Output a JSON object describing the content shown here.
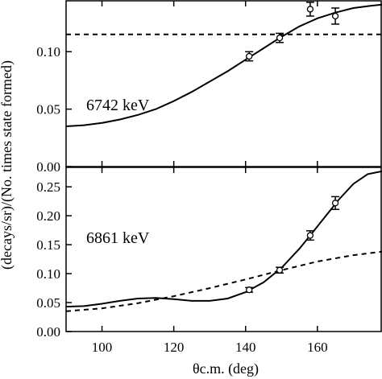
{
  "chart_data": [
    {
      "type": "line",
      "panel_label": "6742 keV",
      "xlim": [
        90,
        178
      ],
      "ylim": [
        0,
        0.145
      ],
      "xticks": [
        100,
        120,
        140,
        160
      ],
      "yticks": [
        0.0,
        0.05,
        0.1
      ],
      "ytick_labels": [
        "0.00",
        "0.05",
        "0.10"
      ],
      "grid": false,
      "series": [
        {
          "style": "solid",
          "x": [
            90,
            95,
            100,
            105,
            110,
            115,
            120,
            125,
            130,
            135,
            140,
            145,
            150,
            155,
            160,
            165,
            170,
            175,
            178
          ],
          "y": [
            0.035,
            0.036,
            0.038,
            0.041,
            0.045,
            0.05,
            0.057,
            0.065,
            0.074,
            0.083,
            0.093,
            0.103,
            0.113,
            0.122,
            0.129,
            0.134,
            0.138,
            0.14,
            0.141
          ]
        },
        {
          "style": "dashed",
          "x": [
            90,
            178
          ],
          "y": [
            0.115,
            0.115
          ]
        },
        {
          "style": "points",
          "x": [
            141,
            149.5,
            158,
            165
          ],
          "y": [
            0.096,
            0.112,
            0.137,
            0.131
          ],
          "err": [
            0.004,
            0.004,
            0.006,
            0.007
          ]
        }
      ]
    },
    {
      "type": "line",
      "panel_label": "6861 keV",
      "xlim": [
        90,
        178
      ],
      "ylim": [
        0,
        0.285
      ],
      "xticks": [
        100,
        120,
        140,
        160
      ],
      "xtick_labels": [
        "100",
        "120",
        "140",
        "160"
      ],
      "yticks": [
        0.0,
        0.05,
        0.1,
        0.15,
        0.2,
        0.25
      ],
      "ytick_labels": [
        "0.00",
        "0.05",
        "0.10",
        "0.15",
        "0.20",
        "0.25"
      ],
      "grid": false,
      "series": [
        {
          "style": "solid",
          "x": [
            90,
            95,
            100,
            105,
            110,
            115,
            120,
            125,
            130,
            135,
            140,
            145,
            150,
            155,
            158,
            162,
            166,
            170,
            174,
            178
          ],
          "y": [
            0.043,
            0.044,
            0.048,
            0.053,
            0.057,
            0.058,
            0.056,
            0.053,
            0.053,
            0.057,
            0.068,
            0.085,
            0.11,
            0.143,
            0.166,
            0.197,
            0.228,
            0.255,
            0.272,
            0.277
          ]
        },
        {
          "style": "dashed",
          "x": [
            90,
            100,
            110,
            120,
            130,
            140,
            150,
            160,
            170,
            178
          ],
          "y": [
            0.035,
            0.04,
            0.049,
            0.061,
            0.075,
            0.09,
            0.106,
            0.121,
            0.132,
            0.138
          ]
        },
        {
          "style": "points",
          "x": [
            141,
            149.5,
            158,
            165
          ],
          "y": [
            0.072,
            0.106,
            0.166,
            0.222
          ],
          "err": [
            0.004,
            0.005,
            0.008,
            0.011
          ]
        }
      ]
    }
  ],
  "xlabel": "θc.m. (deg)",
  "ylabel": "(decays/sr)/(No. times state formed)"
}
